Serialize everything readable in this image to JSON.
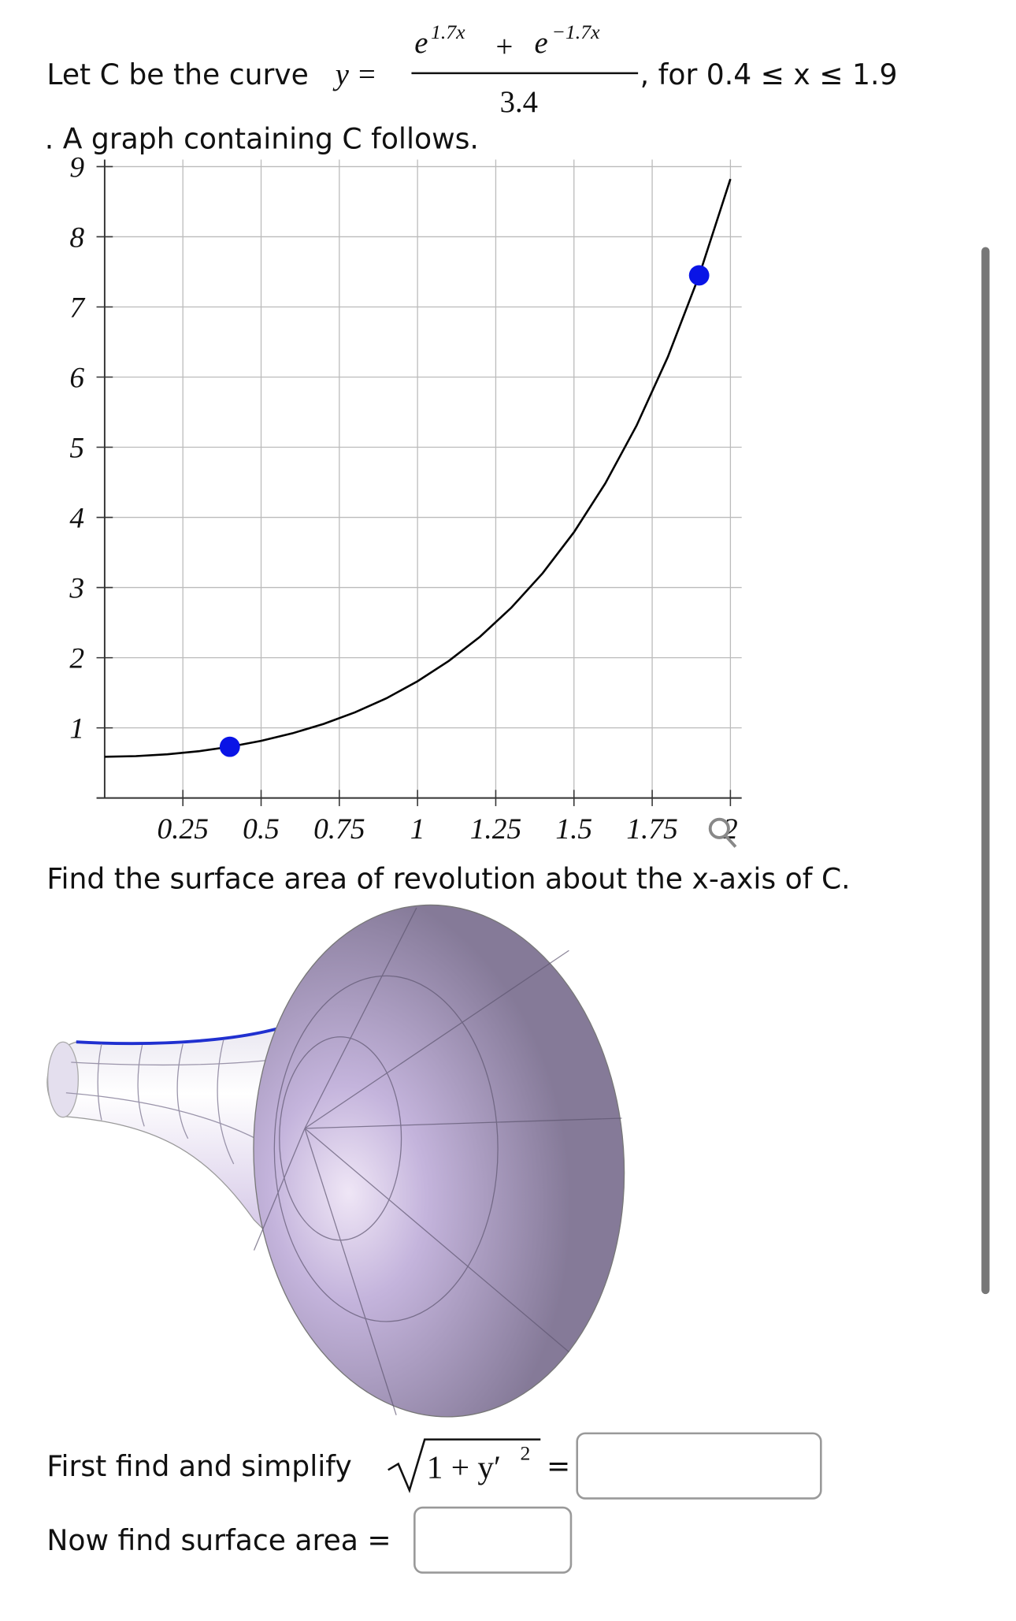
{
  "question": {
    "intro": "Let C be the curve",
    "formula": {
      "lhs": "y =",
      "base1": "e",
      "exp1": "1.7x",
      "plus": "+",
      "base2": "e",
      "exp2": "−1.7x",
      "den": "3.4"
    },
    "domain": ", for 0.4 ≤ x ≤ 1.9",
    "follows": ". A graph containing C follows.",
    "task": "Find the surface area of revolution about the x-axis of C.",
    "step1": "First find and simplify",
    "radical": "1 + y′",
    "radical_exp": "2",
    "equals": "=",
    "step2": "Now find surface area ="
  },
  "chart_data": {
    "type": "line",
    "x": [
      0,
      0.1,
      0.2,
      0.3,
      0.4,
      0.5,
      0.6,
      0.7,
      0.8,
      0.9,
      1,
      1.1,
      1.2,
      1.3,
      1.4,
      1.5,
      1.6,
      1.7,
      1.8,
      1.9,
      2
    ],
    "values": [
      0.588,
      0.597,
      0.623,
      0.666,
      0.73,
      0.814,
      0.922,
      1.056,
      1.221,
      1.42,
      1.664,
      1.954,
      2.3,
      2.714,
      3.205,
      3.789,
      4.484,
      5.308,
      6.287,
      7.446,
      8.823
    ],
    "color": "#000000",
    "points": {
      "x": [
        0.4,
        1.9
      ],
      "values": [
        0.73,
        7.45
      ],
      "color": "#0a14e6"
    },
    "xlim": [
      -0.026,
      2.036
    ],
    "ylim": [
      0,
      9.1
    ],
    "xticks": [
      0.25,
      0.5,
      0.75,
      1,
      1.25,
      1.5,
      1.75,
      2
    ],
    "yticks": [
      1,
      2,
      3,
      4,
      5,
      6,
      7,
      8,
      9
    ],
    "grid": true
  }
}
